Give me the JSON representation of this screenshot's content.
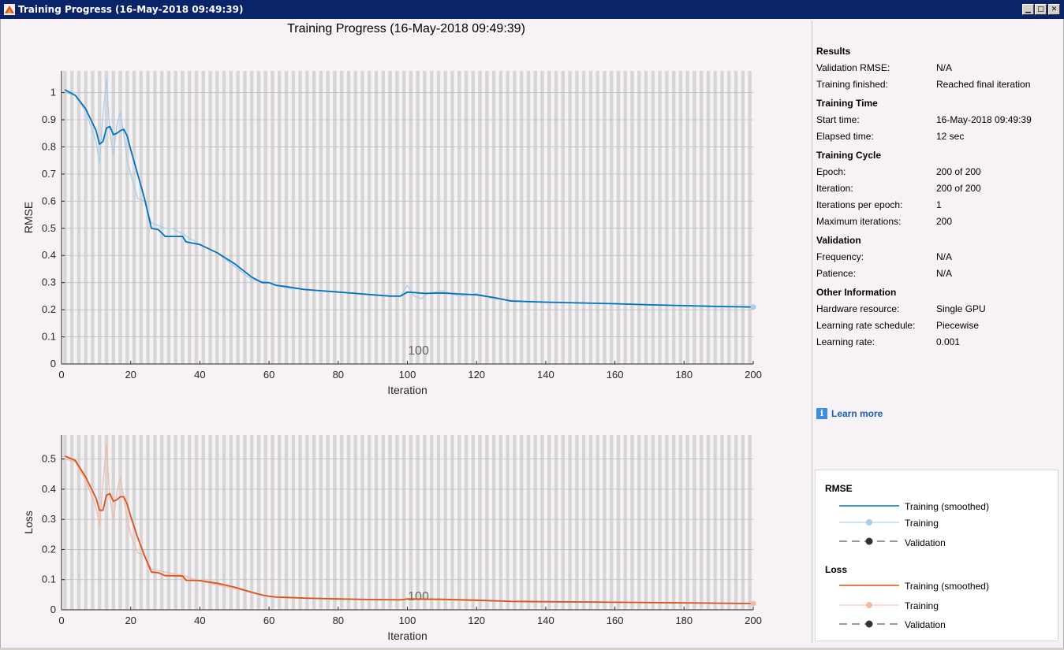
{
  "window": {
    "title": "Training Progress (16-May-2018 09:49:39)"
  },
  "chart_title": "Training Progress (16-May-2018 09:49:39)",
  "colors": {
    "rmse_smoothed": "#0072bd",
    "rmse_raw": "#a9cce8",
    "loss_smoothed": "#d95319",
    "loss_raw": "#f3b9a6",
    "background": "#f6f2f5",
    "stripe": "#d6d6d6"
  },
  "results": {
    "title": "Results",
    "validation_rmse_label": "Validation RMSE:",
    "validation_rmse": "N/A",
    "training_finished_label": "Training finished:",
    "training_finished": "Reached final iteration"
  },
  "training_time": {
    "title": "Training Time",
    "start_label": "Start time:",
    "start": "16-May-2018 09:49:39",
    "elapsed_label": "Elapsed time:",
    "elapsed": "12 sec"
  },
  "training_cycle": {
    "title": "Training Cycle",
    "epoch_label": "Epoch:",
    "epoch": "200 of 200",
    "iteration_label": "Iteration:",
    "iteration": "200 of 200",
    "ipe_label": "Iterations per epoch:",
    "ipe": "1",
    "max_label": "Maximum iterations:",
    "max": "200"
  },
  "validation": {
    "title": "Validation",
    "frequency_label": "Frequency:",
    "frequency": "N/A",
    "patience_label": "Patience:",
    "patience": "N/A"
  },
  "other": {
    "title": "Other Information",
    "hardware_label": "Hardware resource:",
    "hardware": "Single GPU",
    "schedule_label": "Learning rate schedule:",
    "schedule": "Piecewise",
    "lr_label": "Learning rate:",
    "lr": "0.001"
  },
  "learn_more": "Learn more",
  "legend": {
    "rmse_title": "RMSE",
    "loss_title": "Loss",
    "smoothed": "Training (smoothed)",
    "training": "Training",
    "validation": "Validation"
  },
  "chart_data": [
    {
      "type": "line",
      "title": "",
      "xlabel": "Iteration",
      "ylabel": "RMSE",
      "xlim": [
        0,
        200
      ],
      "ylim": [
        0,
        1.08
      ],
      "xticks": [
        0,
        20,
        40,
        60,
        80,
        100,
        120,
        140,
        160,
        180,
        200
      ],
      "yticks": [
        0,
        0.1,
        0.2,
        0.3,
        0.4,
        0.5,
        0.6,
        0.7,
        0.8,
        0.9,
        1
      ],
      "epoch_marker_label": "100",
      "grid": true,
      "series": [
        {
          "name": "Training (smoothed)",
          "x": [
            1,
            4,
            7,
            10,
            11,
            12,
            13,
            14,
            15,
            16,
            17,
            18,
            19,
            20,
            22,
            24,
            26,
            28,
            30,
            32,
            35,
            36,
            40,
            45,
            50,
            55,
            58,
            60,
            62,
            65,
            70,
            75,
            80,
            85,
            90,
            95,
            98,
            100,
            105,
            110,
            115,
            120,
            125,
            130,
            140,
            150,
            160,
            170,
            180,
            190,
            200
          ],
          "values": [
            1.01,
            0.99,
            0.94,
            0.86,
            0.81,
            0.82,
            0.87,
            0.875,
            0.845,
            0.85,
            0.86,
            0.865,
            0.84,
            0.79,
            0.7,
            0.61,
            0.5,
            0.495,
            0.47,
            0.47,
            0.47,
            0.45,
            0.44,
            0.41,
            0.37,
            0.32,
            0.3,
            0.3,
            0.29,
            0.285,
            0.275,
            0.27,
            0.265,
            0.26,
            0.255,
            0.25,
            0.25,
            0.265,
            0.26,
            0.262,
            0.258,
            0.255,
            0.245,
            0.232,
            0.228,
            0.225,
            0.222,
            0.218,
            0.215,
            0.212,
            0.21
          ]
        },
        {
          "name": "Training",
          "x": [
            1,
            4,
            7,
            10,
            11,
            12,
            13,
            14,
            15,
            16,
            17,
            18,
            19,
            20,
            22,
            24,
            26,
            28,
            30,
            32,
            35,
            40,
            45,
            50,
            55,
            60,
            65,
            70,
            80,
            90,
            98,
            100,
            102,
            104,
            106,
            110,
            115,
            120,
            125,
            130,
            140,
            160,
            180,
            200
          ],
          "values": [
            1.0,
            0.99,
            0.93,
            0.82,
            0.74,
            0.92,
            1.05,
            0.85,
            0.77,
            0.88,
            0.93,
            0.85,
            0.75,
            0.7,
            0.61,
            0.6,
            0.52,
            0.51,
            0.5,
            0.5,
            0.48,
            0.44,
            0.41,
            0.36,
            0.31,
            0.3,
            0.28,
            0.275,
            0.265,
            0.255,
            0.25,
            0.29,
            0.25,
            0.24,
            0.26,
            0.27,
            0.25,
            0.26,
            0.24,
            0.235,
            0.228,
            0.222,
            0.215,
            0.21
          ]
        }
      ]
    },
    {
      "type": "line",
      "title": "",
      "xlabel": "Iteration",
      "ylabel": "Loss",
      "xlim": [
        0,
        200
      ],
      "ylim": [
        0,
        0.58
      ],
      "xticks": [
        0,
        20,
        40,
        60,
        80,
        100,
        120,
        140,
        160,
        180,
        200
      ],
      "yticks": [
        0,
        0.1,
        0.2,
        0.3,
        0.4,
        0.5
      ],
      "epoch_marker_label": "100",
      "grid": true,
      "series": [
        {
          "name": "Training (smoothed)",
          "x": [
            1,
            4,
            7,
            10,
            11,
            12,
            13,
            14,
            15,
            16,
            17,
            18,
            19,
            20,
            22,
            24,
            26,
            28,
            30,
            32,
            35,
            36,
            40,
            45,
            50,
            55,
            58,
            60,
            62,
            65,
            70,
            80,
            90,
            98,
            100,
            110,
            120,
            130,
            140,
            160,
            180,
            200
          ],
          "values": [
            0.51,
            0.495,
            0.44,
            0.37,
            0.33,
            0.33,
            0.38,
            0.385,
            0.36,
            0.365,
            0.375,
            0.375,
            0.35,
            0.31,
            0.24,
            0.18,
            0.125,
            0.123,
            0.113,
            0.113,
            0.112,
            0.098,
            0.097,
            0.088,
            0.075,
            0.058,
            0.049,
            0.045,
            0.042,
            0.041,
            0.039,
            0.036,
            0.034,
            0.033,
            0.036,
            0.035,
            0.032,
            0.028,
            0.027,
            0.025,
            0.023,
            0.021
          ]
        },
        {
          "name": "Training",
          "x": [
            1,
            4,
            7,
            10,
            11,
            12,
            13,
            14,
            15,
            16,
            17,
            18,
            19,
            20,
            22,
            24,
            26,
            30,
            35,
            40,
            50,
            60,
            80,
            100,
            120,
            140,
            160,
            180,
            200
          ],
          "values": [
            0.5,
            0.49,
            0.43,
            0.34,
            0.28,
            0.42,
            0.55,
            0.37,
            0.3,
            0.39,
            0.44,
            0.37,
            0.3,
            0.25,
            0.19,
            0.18,
            0.135,
            0.125,
            0.115,
            0.095,
            0.07,
            0.045,
            0.035,
            0.035,
            0.03,
            0.027,
            0.025,
            0.023,
            0.021
          ]
        }
      ]
    }
  ]
}
